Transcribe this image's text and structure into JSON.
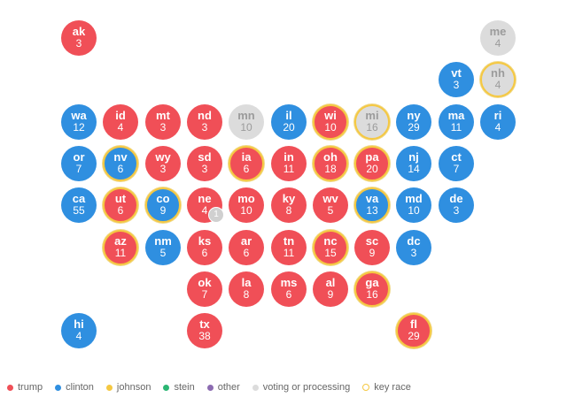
{
  "colors": {
    "trump": "#f04f57",
    "clinton": "#2f8fe0",
    "johnson": "#f5c842",
    "stein": "#2bb673",
    "other": "#8c6bb1",
    "processing": "#dcdcdc",
    "key_race": "#f5c842"
  },
  "chart_data": {
    "type": "tile-grid map",
    "title": "",
    "states": [
      {
        "abbr": "ak",
        "ev": "3",
        "status": "trump",
        "key": false,
        "row": 0,
        "col": 0
      },
      {
        "abbr": "me",
        "ev": "4",
        "status": "processing",
        "key": false,
        "row": 0,
        "col": 10
      },
      {
        "abbr": "vt",
        "ev": "3",
        "status": "clinton",
        "key": false,
        "row": 1,
        "col": 9
      },
      {
        "abbr": "nh",
        "ev": "4",
        "status": "processing",
        "key": true,
        "row": 1,
        "col": 10
      },
      {
        "abbr": "wa",
        "ev": "12",
        "status": "clinton",
        "key": false,
        "row": 2,
        "col": 0
      },
      {
        "abbr": "id",
        "ev": "4",
        "status": "trump",
        "key": false,
        "row": 2,
        "col": 1
      },
      {
        "abbr": "mt",
        "ev": "3",
        "status": "trump",
        "key": false,
        "row": 2,
        "col": 2
      },
      {
        "abbr": "nd",
        "ev": "3",
        "status": "trump",
        "key": false,
        "row": 2,
        "col": 3
      },
      {
        "abbr": "mn",
        "ev": "10",
        "status": "processing",
        "key": false,
        "row": 2,
        "col": 4
      },
      {
        "abbr": "il",
        "ev": "20",
        "status": "clinton",
        "key": false,
        "row": 2,
        "col": 5
      },
      {
        "abbr": "wi",
        "ev": "10",
        "status": "trump",
        "key": true,
        "row": 2,
        "col": 6
      },
      {
        "abbr": "mi",
        "ev": "16",
        "status": "processing",
        "key": true,
        "row": 2,
        "col": 7
      },
      {
        "abbr": "ny",
        "ev": "29",
        "status": "clinton",
        "key": false,
        "row": 2,
        "col": 8
      },
      {
        "abbr": "ma",
        "ev": "11",
        "status": "clinton",
        "key": false,
        "row": 2,
        "col": 9
      },
      {
        "abbr": "ri",
        "ev": "4",
        "status": "clinton",
        "key": false,
        "row": 2,
        "col": 10
      },
      {
        "abbr": "or",
        "ev": "7",
        "status": "clinton",
        "key": false,
        "row": 3,
        "col": 0
      },
      {
        "abbr": "nv",
        "ev": "6",
        "status": "clinton",
        "key": true,
        "row": 3,
        "col": 1
      },
      {
        "abbr": "wy",
        "ev": "3",
        "status": "trump",
        "key": false,
        "row": 3,
        "col": 2
      },
      {
        "abbr": "sd",
        "ev": "3",
        "status": "trump",
        "key": false,
        "row": 3,
        "col": 3
      },
      {
        "abbr": "ia",
        "ev": "6",
        "status": "trump",
        "key": true,
        "row": 3,
        "col": 4
      },
      {
        "abbr": "in",
        "ev": "11",
        "status": "trump",
        "key": false,
        "row": 3,
        "col": 5
      },
      {
        "abbr": "oh",
        "ev": "18",
        "status": "trump",
        "key": true,
        "row": 3,
        "col": 6
      },
      {
        "abbr": "pa",
        "ev": "20",
        "status": "trump",
        "key": true,
        "row": 3,
        "col": 7
      },
      {
        "abbr": "nj",
        "ev": "14",
        "status": "clinton",
        "key": false,
        "row": 3,
        "col": 8
      },
      {
        "abbr": "ct",
        "ev": "7",
        "status": "clinton",
        "key": false,
        "row": 3,
        "col": 9
      },
      {
        "abbr": "ca",
        "ev": "55",
        "status": "clinton",
        "key": false,
        "row": 4,
        "col": 0
      },
      {
        "abbr": "ut",
        "ev": "6",
        "status": "trump",
        "key": true,
        "row": 4,
        "col": 1
      },
      {
        "abbr": "co",
        "ev": "9",
        "status": "clinton",
        "key": true,
        "row": 4,
        "col": 2
      },
      {
        "abbr": "ne",
        "ev": "4",
        "status": "trump",
        "key": false,
        "row": 4,
        "col": 3,
        "badge": "1"
      },
      {
        "abbr": "mo",
        "ev": "10",
        "status": "trump",
        "key": false,
        "row": 4,
        "col": 4
      },
      {
        "abbr": "ky",
        "ev": "8",
        "status": "trump",
        "key": false,
        "row": 4,
        "col": 5
      },
      {
        "abbr": "wv",
        "ev": "5",
        "status": "trump",
        "key": false,
        "row": 4,
        "col": 6
      },
      {
        "abbr": "va",
        "ev": "13",
        "status": "clinton",
        "key": true,
        "row": 4,
        "col": 7
      },
      {
        "abbr": "md",
        "ev": "10",
        "status": "clinton",
        "key": false,
        "row": 4,
        "col": 8
      },
      {
        "abbr": "de",
        "ev": "3",
        "status": "clinton",
        "key": false,
        "row": 4,
        "col": 9
      },
      {
        "abbr": "az",
        "ev": "11",
        "status": "trump",
        "key": true,
        "row": 5,
        "col": 1
      },
      {
        "abbr": "nm",
        "ev": "5",
        "status": "clinton",
        "key": false,
        "row": 5,
        "col": 2
      },
      {
        "abbr": "ks",
        "ev": "6",
        "status": "trump",
        "key": false,
        "row": 5,
        "col": 3
      },
      {
        "abbr": "ar",
        "ev": "6",
        "status": "trump",
        "key": false,
        "row": 5,
        "col": 4
      },
      {
        "abbr": "tn",
        "ev": "11",
        "status": "trump",
        "key": false,
        "row": 5,
        "col": 5
      },
      {
        "abbr": "nc",
        "ev": "15",
        "status": "trump",
        "key": true,
        "row": 5,
        "col": 6
      },
      {
        "abbr": "sc",
        "ev": "9",
        "status": "trump",
        "key": false,
        "row": 5,
        "col": 7
      },
      {
        "abbr": "dc",
        "ev": "3",
        "status": "clinton",
        "key": false,
        "row": 5,
        "col": 8
      },
      {
        "abbr": "ok",
        "ev": "7",
        "status": "trump",
        "key": false,
        "row": 6,
        "col": 3
      },
      {
        "abbr": "la",
        "ev": "8",
        "status": "trump",
        "key": false,
        "row": 6,
        "col": 4
      },
      {
        "abbr": "ms",
        "ev": "6",
        "status": "trump",
        "key": false,
        "row": 6,
        "col": 5
      },
      {
        "abbr": "al",
        "ev": "9",
        "status": "trump",
        "key": false,
        "row": 6,
        "col": 6
      },
      {
        "abbr": "ga",
        "ev": "16",
        "status": "trump",
        "key": true,
        "row": 6,
        "col": 7
      },
      {
        "abbr": "hi",
        "ev": "4",
        "status": "clinton",
        "key": false,
        "row": 7,
        "col": 0
      },
      {
        "abbr": "tx",
        "ev": "38",
        "status": "trump",
        "key": false,
        "row": 7,
        "col": 3
      },
      {
        "abbr": "fl",
        "ev": "29",
        "status": "trump",
        "key": true,
        "row": 7,
        "col": 8
      }
    ],
    "legend": [
      {
        "label": "trump",
        "color": "#f04f57",
        "style": "dot"
      },
      {
        "label": "clinton",
        "color": "#2f8fe0",
        "style": "dot"
      },
      {
        "label": "johnson",
        "color": "#f5c842",
        "style": "dot"
      },
      {
        "label": "stein",
        "color": "#2bb673",
        "style": "dot"
      },
      {
        "label": "other",
        "color": "#8c6bb1",
        "style": "dot"
      },
      {
        "label": "voting or processing",
        "color": "#dcdcdc",
        "style": "dot"
      },
      {
        "label": "key race",
        "color": "#f5c842",
        "style": "ring"
      }
    ]
  }
}
